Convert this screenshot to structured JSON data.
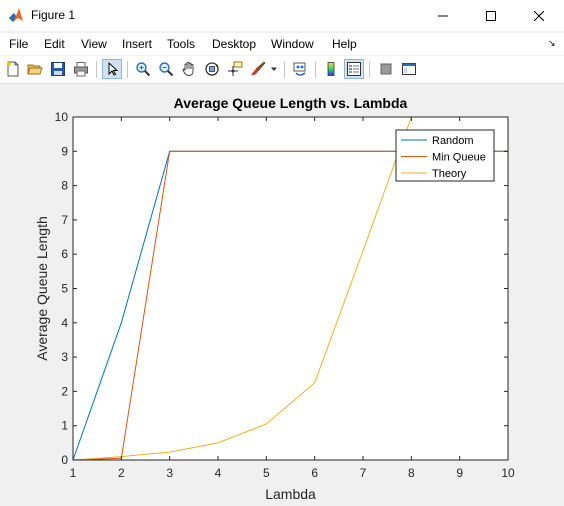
{
  "window": {
    "title": "Figure 1",
    "icon": "matlab-logo-icon"
  },
  "menu": {
    "items": [
      "File",
      "Edit",
      "View",
      "Insert",
      "Tools",
      "Desktop",
      "Window",
      "Help"
    ]
  },
  "toolbar": {
    "buttons": [
      "new-figure-icon",
      "open-file-icon",
      "save-icon",
      "print-icon",
      "edit-plot-arrow-icon",
      "zoom-in-icon",
      "zoom-out-icon",
      "pan-hand-icon",
      "rotate-3d-icon",
      "data-cursor-icon",
      "brush-icon",
      "link-plot-icon",
      "insert-colorbar-icon",
      "insert-legend-icon",
      "hide-plot-tools-icon",
      "show-plot-tools-icon"
    ]
  },
  "chart_data": {
    "type": "line",
    "title": "Average Queue Length vs. Lambda",
    "xlabel": "Lambda",
    "ylabel": "Average Queue Length",
    "xlim": [
      1,
      10
    ],
    "ylim": [
      0,
      10
    ],
    "xticks": [
      "1",
      "2",
      "3",
      "4",
      "5",
      "6",
      "7",
      "8",
      "9",
      "10"
    ],
    "yticks": [
      "0",
      "1",
      "2",
      "3",
      "4",
      "5",
      "6",
      "7",
      "8",
      "9",
      "10"
    ],
    "grid": false,
    "legend_position": "top-right",
    "series": [
      {
        "name": "Random",
        "color": "#0072bd",
        "x": [
          1,
          2,
          3,
          4,
          5,
          6,
          7,
          8,
          9,
          10
        ],
        "y": [
          0,
          4,
          9,
          9,
          9,
          9,
          9,
          9,
          9,
          9
        ]
      },
      {
        "name": "Min Queue",
        "color": "#d95319",
        "x": [
          1,
          2,
          3,
          4,
          5,
          6,
          7,
          8,
          9,
          10
        ],
        "y": [
          0,
          0.05,
          9,
          9,
          9,
          9,
          9,
          9,
          9,
          9
        ]
      },
      {
        "name": "Theory",
        "color": "#edb120",
        "x": [
          1,
          2,
          3,
          4,
          5,
          6,
          7,
          8,
          9,
          10
        ],
        "y": [
          0,
          0.1,
          0.23,
          0.5,
          1.05,
          2.25,
          6.1,
          10,
          10,
          10
        ]
      }
    ]
  }
}
